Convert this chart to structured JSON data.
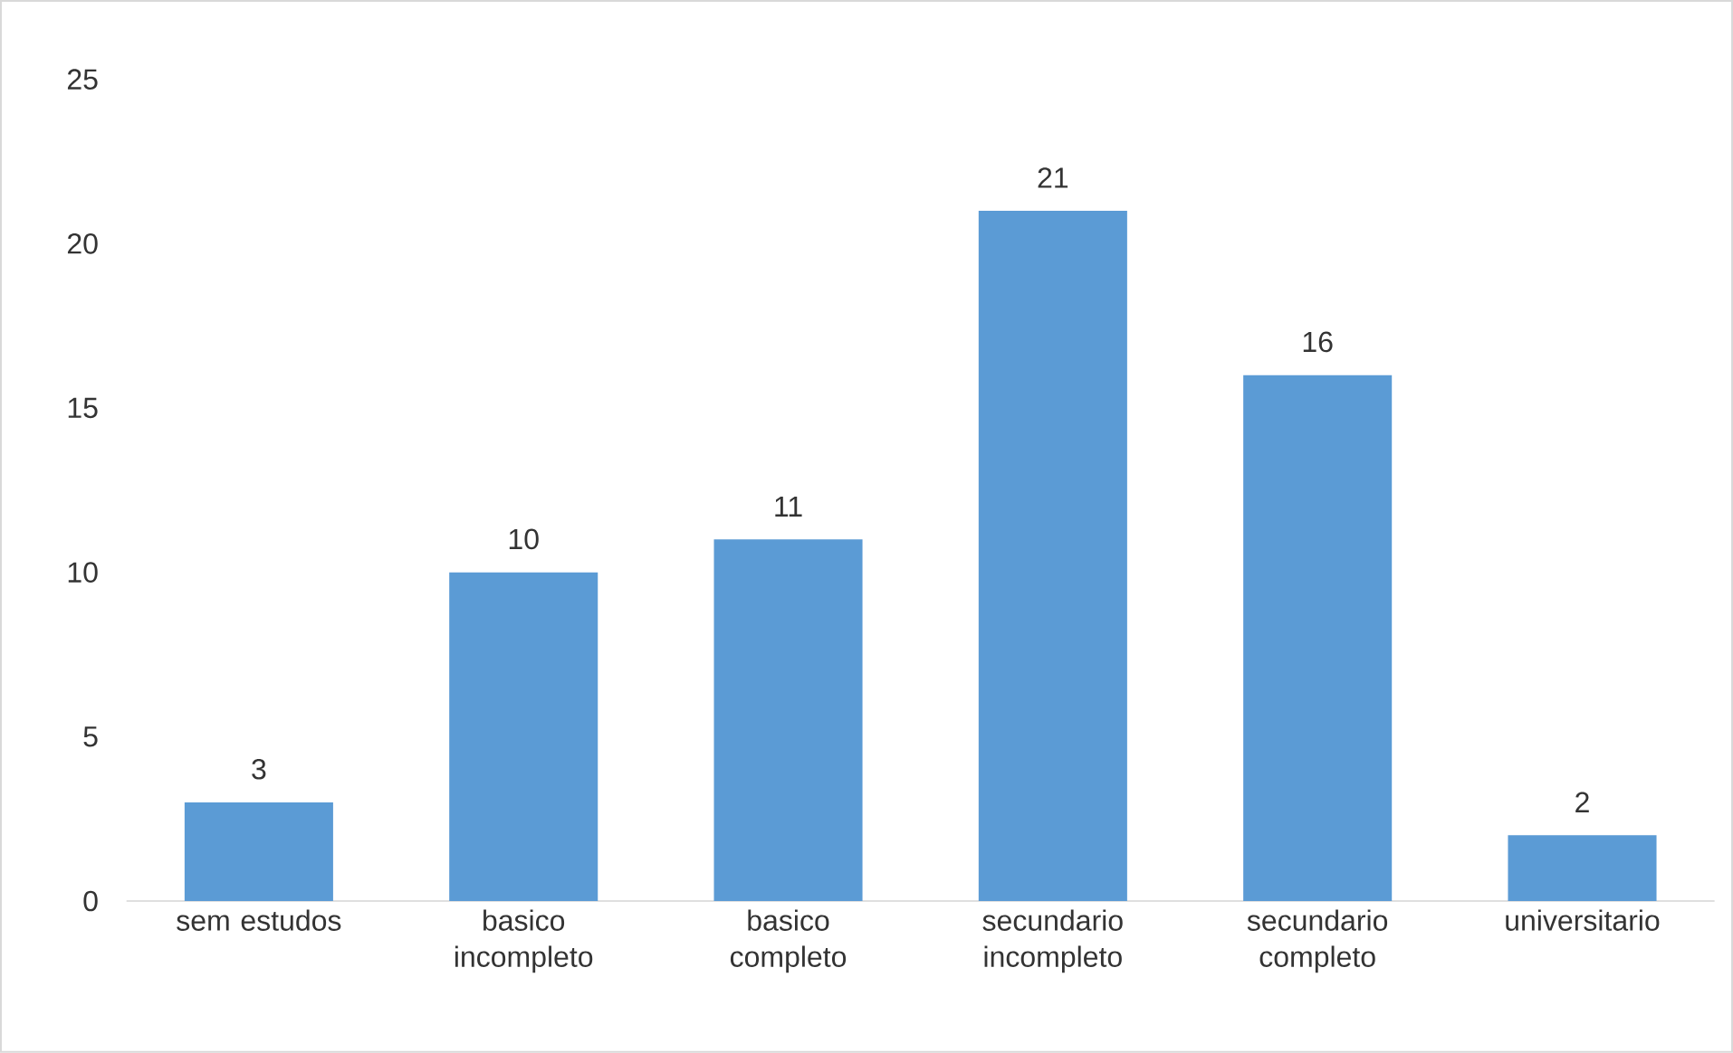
{
  "chart_data": {
    "type": "bar",
    "categories": [
      "sem estudos",
      "basico incompleto",
      "basico completo",
      "secundario incompleto",
      "secundario completo",
      "universitario"
    ],
    "values": [
      3,
      10,
      11,
      21,
      16,
      2
    ],
    "color": "#5b9bd5",
    "ylim": [
      0,
      25
    ],
    "yticks": [
      0,
      5,
      10,
      15,
      20,
      25
    ],
    "data_labels": true
  }
}
